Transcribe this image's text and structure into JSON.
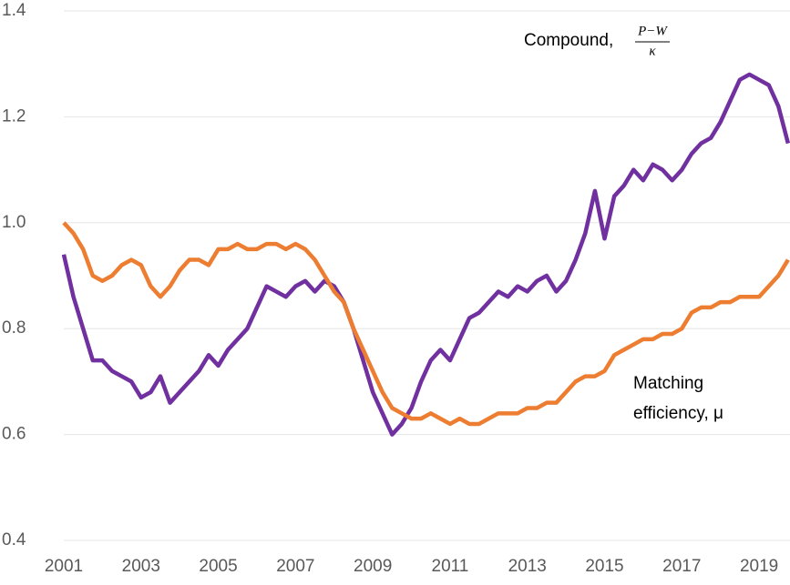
{
  "chart_data": {
    "type": "line",
    "x": [
      2001,
      2001.25,
      2001.5,
      2001.75,
      2002,
      2002.25,
      2002.5,
      2002.75,
      2003,
      2003.25,
      2003.5,
      2003.75,
      2004,
      2004.25,
      2004.5,
      2004.75,
      2005,
      2005.25,
      2005.5,
      2005.75,
      2006,
      2006.25,
      2006.5,
      2006.75,
      2007,
      2007.25,
      2007.5,
      2007.75,
      2008,
      2008.25,
      2008.5,
      2008.75,
      2009,
      2009.25,
      2009.5,
      2009.75,
      2010,
      2010.25,
      2010.5,
      2010.75,
      2011,
      2011.25,
      2011.5,
      2011.75,
      2012,
      2012.25,
      2012.5,
      2012.75,
      2013,
      2013.25,
      2013.5,
      2013.75,
      2014,
      2014.25,
      2014.5,
      2014.75,
      2015,
      2015.25,
      2015.5,
      2015.75,
      2016,
      2016.25,
      2016.5,
      2016.75,
      2017,
      2017.25,
      2017.5,
      2017.75,
      2018,
      2018.25,
      2018.5,
      2018.75,
      2019,
      2019.25,
      2019.5,
      2019.75
    ],
    "series": [
      {
        "color": "#7030a0",
        "values": [
          0.94,
          0.86,
          0.8,
          0.74,
          0.74,
          0.72,
          0.71,
          0.7,
          0.67,
          0.68,
          0.71,
          0.66,
          0.68,
          0.7,
          0.72,
          0.75,
          0.73,
          0.76,
          0.78,
          0.8,
          0.84,
          0.88,
          0.87,
          0.86,
          0.88,
          0.89,
          0.87,
          0.89,
          0.88,
          0.85,
          0.8,
          0.74,
          0.68,
          0.64,
          0.6,
          0.62,
          0.65,
          0.7,
          0.74,
          0.76,
          0.74,
          0.78,
          0.82,
          0.83,
          0.85,
          0.87,
          0.86,
          0.88,
          0.87,
          0.89,
          0.9,
          0.87,
          0.89,
          0.93,
          0.98,
          1.06,
          0.97,
          1.05,
          1.07,
          1.1,
          1.08,
          1.11,
          1.1,
          1.08,
          1.1,
          1.13,
          1.15,
          1.16,
          1.19,
          1.23,
          1.27,
          1.28,
          1.27,
          1.26,
          1.22,
          1.15
        ]
      },
      {
        "color": "#ed7d31",
        "values": [
          1.0,
          0.98,
          0.95,
          0.9,
          0.89,
          0.9,
          0.92,
          0.93,
          0.92,
          0.88,
          0.86,
          0.88,
          0.91,
          0.93,
          0.93,
          0.92,
          0.95,
          0.95,
          0.96,
          0.95,
          0.95,
          0.96,
          0.96,
          0.95,
          0.96,
          0.95,
          0.93,
          0.9,
          0.87,
          0.85,
          0.8,
          0.76,
          0.72,
          0.68,
          0.65,
          0.64,
          0.63,
          0.63,
          0.64,
          0.63,
          0.62,
          0.63,
          0.62,
          0.62,
          0.63,
          0.64,
          0.64,
          0.64,
          0.65,
          0.65,
          0.66,
          0.66,
          0.68,
          0.7,
          0.71,
          0.71,
          0.72,
          0.75,
          0.76,
          0.77,
          0.78,
          0.78,
          0.79,
          0.79,
          0.8,
          0.83,
          0.84,
          0.84,
          0.85,
          0.85,
          0.86,
          0.86,
          0.86,
          0.88,
          0.9,
          0.93
        ]
      }
    ],
    "annotations": [
      {
        "text": "Compound,",
        "numerator": "P−W",
        "denominator": "κ"
      },
      {
        "lines": [
          "Matching",
          "efficiency, μ"
        ]
      }
    ],
    "xlim": [
      2001,
      2019.8
    ],
    "xticks": [
      2001,
      2003,
      2005,
      2007,
      2009,
      2011,
      2013,
      2015,
      2017,
      2019
    ],
    "ylim": [
      0.4,
      1.4
    ],
    "yticks": [
      0.4,
      0.6,
      0.8,
      {
        "value": 1.0,
        "label": "1.0"
      },
      1.2,
      1.4
    ],
    "grid": true
  }
}
